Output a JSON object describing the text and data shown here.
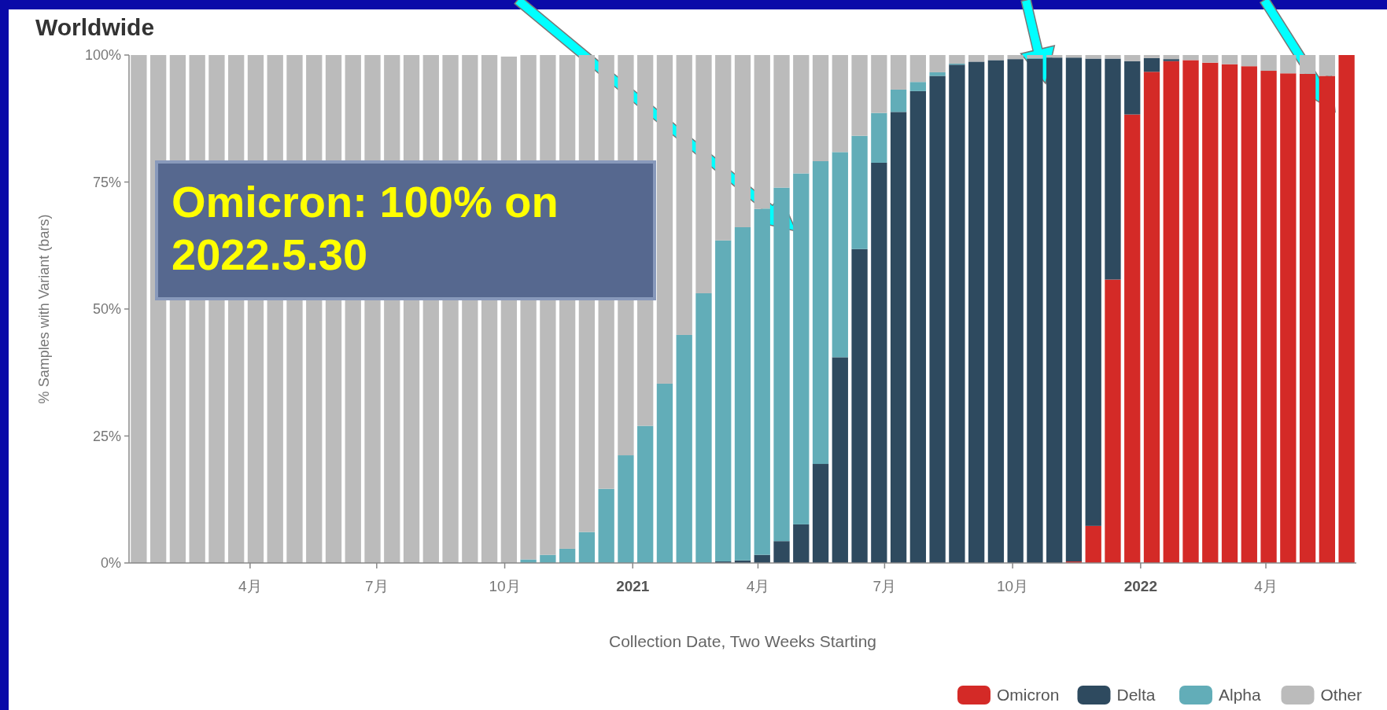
{
  "chart_data": {
    "type": "bar",
    "stacked": true,
    "title": "Worldwide",
    "xlabel": "Collection Date, Two Weeks Starting",
    "ylabel": "% Samples with Variant (bars)",
    "annotations": [
      "Omicron: 100% on 2022.5.30"
    ],
    "x": [
      "2020-01-12",
      "2020-01-26",
      "2020-02-09",
      "2020-02-23",
      "2020-03-08",
      "2020-03-22",
      "2020-04-05",
      "2020-04-19",
      "2020-05-03",
      "2020-05-17",
      "2020-05-31",
      "2020-06-14",
      "2020-06-28",
      "2020-07-12",
      "2020-07-26",
      "2020-08-09",
      "2020-08-23",
      "2020-09-06",
      "2020-09-20",
      "2020-10-04",
      "2020-10-18",
      "2020-11-01",
      "2020-11-15",
      "2020-11-29",
      "2020-12-13",
      "2020-12-27",
      "2021-01-10",
      "2021-01-24",
      "2021-02-07",
      "2021-02-21",
      "2021-03-07",
      "2021-03-21",
      "2021-04-04",
      "2021-04-18",
      "2021-05-02",
      "2021-05-16",
      "2021-05-30",
      "2021-06-13",
      "2021-06-27",
      "2021-07-11",
      "2021-07-25",
      "2021-08-08",
      "2021-08-22",
      "2021-09-05",
      "2021-09-19",
      "2021-10-03",
      "2021-10-17",
      "2021-10-31",
      "2021-11-14",
      "2021-11-28",
      "2021-12-12",
      "2021-12-26",
      "2022-01-09",
      "2022-01-23",
      "2022-02-06",
      "2022-02-20",
      "2022-03-06",
      "2022-03-20",
      "2022-04-03",
      "2022-04-17",
      "2022-05-01",
      "2022-05-15",
      "2022-05-29"
    ],
    "series": [
      {
        "name": "Omicron",
        "color": "#d42a27",
        "values": [
          0,
          0,
          0,
          0,
          0,
          0,
          0,
          0,
          0,
          0,
          0,
          0,
          0,
          0,
          0,
          0,
          0,
          0,
          0,
          0,
          0,
          0,
          0,
          0,
          0,
          0,
          0,
          0,
          0,
          0,
          0,
          0,
          0,
          0,
          0,
          0,
          0,
          0,
          0,
          0,
          0,
          0,
          0,
          0,
          0,
          0,
          0,
          0,
          0.3,
          7.3,
          55.8,
          88.3,
          96.7,
          98.8,
          99.0,
          98.5,
          98.2,
          97.8,
          96.9,
          96.4,
          96.3,
          95.9,
          100
        ]
      },
      {
        "name": "Delta",
        "color": "#2e4a5f",
        "values": [
          0,
          0,
          0,
          0,
          0,
          0,
          0,
          0,
          0,
          0,
          0,
          0,
          0,
          0,
          0,
          0,
          0,
          0,
          0,
          0,
          0,
          0,
          0,
          0,
          0,
          0,
          0,
          0,
          0,
          0,
          0.3,
          0.5,
          1.6,
          4.3,
          7.6,
          19.5,
          40.5,
          61.8,
          78.8,
          88.8,
          92.9,
          95.9,
          98.1,
          98.7,
          99.0,
          99.2,
          99.3,
          99.5,
          99.2,
          92.0,
          43.5,
          10.5,
          2.7,
          0.4,
          0,
          0,
          0,
          0,
          0,
          0,
          0,
          0,
          0
        ]
      },
      {
        "name": "Alpha",
        "color": "#62adb8",
        "values": [
          0,
          0,
          0,
          0,
          0,
          0,
          0,
          0,
          0,
          0,
          0,
          0,
          0,
          0,
          0,
          0,
          0,
          0,
          0,
          null,
          0.7,
          1.6,
          2.8,
          6.1,
          14.6,
          21.2,
          27.0,
          35.3,
          44.9,
          53.1,
          63.2,
          65.6,
          68.1,
          69.6,
          69.1,
          59.6,
          40.4,
          22.3,
          9.8,
          4.4,
          1.8,
          0.7,
          0.2,
          0,
          0,
          0,
          0,
          0,
          0,
          0,
          0,
          0,
          0,
          0,
          0,
          0,
          0,
          0,
          0,
          0,
          0,
          0,
          0
        ]
      },
      {
        "name": "Other",
        "color": "#bbbbbb",
        "values": [
          100,
          100,
          100,
          100,
          100,
          100,
          100,
          100,
          100,
          100,
          100,
          100,
          100,
          100,
          100,
          100,
          100,
          100,
          100,
          99.7,
          99.3,
          98.4,
          97.2,
          93.9,
          85.4,
          78.8,
          73.0,
          64.7,
          55.1,
          46.9,
          36.5,
          33.9,
          30.3,
          26.1,
          23.3,
          20.9,
          19.1,
          15.9,
          11.4,
          6.8,
          5.3,
          3.4,
          1.7,
          1.3,
          1.0,
          0.8,
          0.7,
          0.5,
          0.5,
          0.7,
          0.7,
          1.2,
          0.6,
          0.8,
          1.0,
          1.5,
          1.8,
          2.2,
          3.1,
          3.6,
          3.7,
          4.1,
          0
        ]
      }
    ],
    "xlim": [
      "2020-01-05",
      "2022-06-05"
    ],
    "xticks": [
      {
        "value": "2020-04-01",
        "label": "4月"
      },
      {
        "value": "2020-07-01",
        "label": "7月"
      },
      {
        "value": "2020-10-01",
        "label": "10月"
      },
      {
        "value": "2021-01-01",
        "label": "2021"
      },
      {
        "value": "2021-04-01",
        "label": "4月"
      },
      {
        "value": "2021-07-01",
        "label": "7月"
      },
      {
        "value": "2021-10-01",
        "label": "10月"
      },
      {
        "value": "2022-01-01",
        "label": "2022"
      },
      {
        "value": "2022-04-01",
        "label": "4月"
      }
    ],
    "ylim": [
      0,
      100
    ],
    "yticks": [
      {
        "value": 0,
        "label": "0%"
      },
      {
        "value": 25,
        "label": "25%"
      },
      {
        "value": 50,
        "label": "50%"
      },
      {
        "value": 75,
        "label": "75%"
      },
      {
        "value": 100,
        "label": "100%"
      }
    ],
    "legend": "bottom right"
  }
}
